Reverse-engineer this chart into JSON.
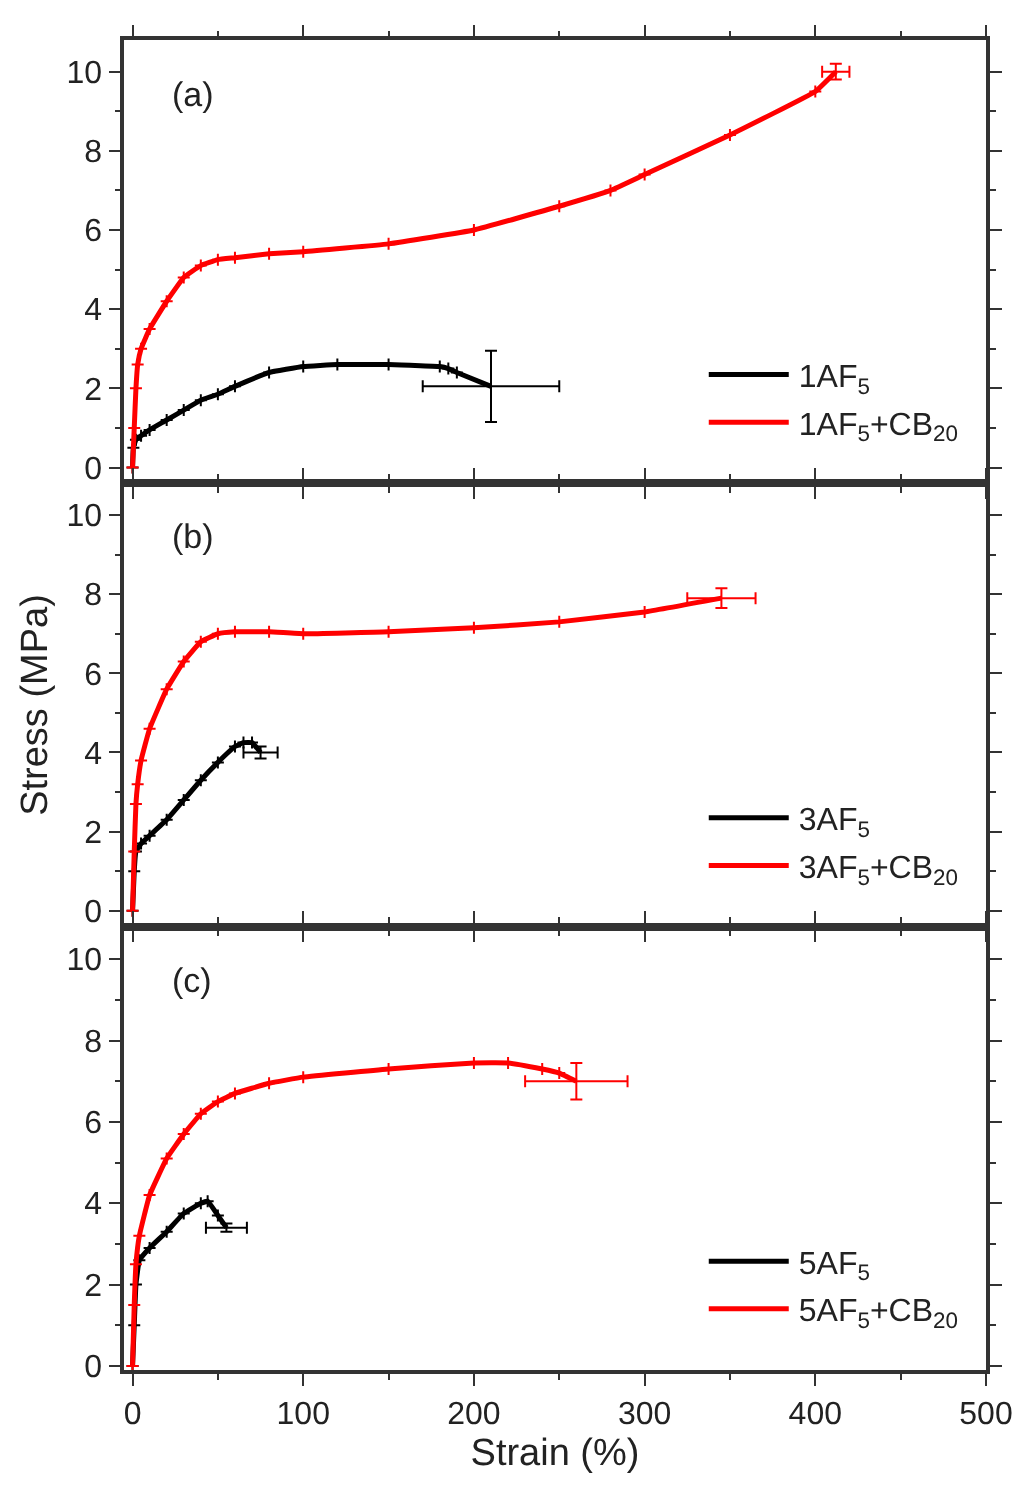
{
  "chart_data": [
    {
      "type": "line",
      "annotations": [
        "(a)"
      ],
      "xlim": [
        -5,
        500
      ],
      "xticks": [
        0,
        100,
        200,
        300,
        400,
        500
      ],
      "ylim": [
        -0.4,
        10.8
      ],
      "yticks": [
        0,
        2,
        4,
        6,
        8,
        10
      ],
      "tick_labels": "y",
      "legend": "bottom right",
      "grid": false,
      "series": [
        {
          "name": "1AF$_{5}$",
          "color": "#000000",
          "x": [
            0,
            0.5,
            2,
            5,
            10,
            20,
            30,
            40,
            50,
            60,
            80,
            100,
            120,
            150,
            180,
            185,
            190,
            210
          ],
          "values": [
            0,
            0.5,
            0.7,
            0.8,
            0.95,
            1.2,
            1.45,
            1.7,
            1.85,
            2.05,
            2.4,
            2.55,
            2.6,
            2.6,
            2.55,
            2.5,
            2.4,
            2.05
          ],
          "errors": [
            null,
            null,
            null,
            null,
            null,
            null,
            null,
            null,
            null,
            null,
            null,
            null,
            null,
            null,
            null,
            null,
            null,
            0.9
          ],
          "xerrors": [
            null,
            null,
            null,
            null,
            null,
            null,
            null,
            null,
            null,
            null,
            null,
            null,
            null,
            null,
            null,
            null,
            null,
            40
          ]
        },
        {
          "name": "1AF$_{5}$+CB$_{20}$",
          "color": "#ff0000",
          "x": [
            0,
            1,
            2,
            3,
            5,
            10,
            20,
            30,
            40,
            50,
            60,
            80,
            100,
            150,
            200,
            250,
            280,
            300,
            350,
            400,
            412
          ],
          "values": [
            0,
            1,
            2,
            2.6,
            3,
            3.5,
            4.2,
            4.8,
            5.1,
            5.25,
            5.3,
            5.4,
            5.45,
            5.65,
            6.0,
            6.6,
            7.0,
            7.4,
            8.4,
            9.5,
            10
          ],
          "errors": [
            null,
            null,
            null,
            null,
            null,
            null,
            null,
            null,
            null,
            null,
            null,
            null,
            null,
            null,
            null,
            null,
            null,
            null,
            null,
            null,
            0.2
          ],
          "xerrors": [
            null,
            null,
            null,
            null,
            null,
            null,
            null,
            null,
            null,
            null,
            null,
            null,
            null,
            null,
            null,
            null,
            null,
            null,
            null,
            null,
            8
          ]
        }
      ]
    },
    {
      "type": "line",
      "annotations": [
        "(b)"
      ],
      "ylabel": "Stress (MPa)",
      "xlim": [
        -5,
        500
      ],
      "xticks": [
        0,
        100,
        200,
        300,
        400,
        500
      ],
      "ylim": [
        -0.4,
        10.8
      ],
      "yticks": [
        0,
        2,
        4,
        6,
        8,
        10
      ],
      "tick_labels": "y",
      "legend": "bottom right",
      "grid": false,
      "series": [
        {
          "name": "3AF$_{5}$",
          "color": "#000000",
          "x": [
            0,
            1,
            2,
            5,
            10,
            20,
            30,
            40,
            50,
            60,
            65,
            70,
            75
          ],
          "values": [
            0,
            1,
            1.5,
            1.7,
            1.9,
            2.3,
            2.8,
            3.3,
            3.75,
            4.15,
            4.25,
            4.25,
            4.0
          ],
          "errors": [
            null,
            null,
            null,
            null,
            null,
            null,
            null,
            null,
            null,
            null,
            null,
            null,
            0.15
          ],
          "xerrors": [
            null,
            null,
            null,
            null,
            null,
            null,
            null,
            null,
            null,
            null,
            null,
            null,
            10
          ]
        },
        {
          "name": "3AF$_{5}$+CB$_{20}$",
          "color": "#ff0000",
          "x": [
            0,
            1,
            2,
            3,
            5,
            10,
            20,
            30,
            40,
            50,
            60,
            80,
            100,
            150,
            200,
            250,
            300,
            345
          ],
          "values": [
            0,
            1.5,
            2.7,
            3.2,
            3.8,
            4.6,
            5.6,
            6.3,
            6.8,
            7.0,
            7.05,
            7.05,
            7.0,
            7.05,
            7.15,
            7.3,
            7.55,
            7.9
          ],
          "errors": [
            null,
            null,
            null,
            null,
            null,
            null,
            null,
            null,
            null,
            null,
            null,
            null,
            null,
            null,
            null,
            null,
            null,
            0.25
          ],
          "xerrors": [
            null,
            null,
            null,
            null,
            null,
            null,
            null,
            null,
            null,
            null,
            null,
            null,
            null,
            null,
            null,
            null,
            null,
            20
          ]
        }
      ]
    },
    {
      "type": "line",
      "annotations": [
        "(c)"
      ],
      "xlabel": "Strain (%)",
      "xlim": [
        -5,
        500
      ],
      "xticks": [
        0,
        100,
        200,
        300,
        400,
        500
      ],
      "ylim": [
        -0.1,
        10.8
      ],
      "yticks": [
        0,
        2,
        4,
        6,
        8,
        10
      ],
      "legend": "bottom right",
      "grid": false,
      "series": [
        {
          "name": "5AF$_{5}$",
          "color": "#000000",
          "x": [
            0,
            1,
            2,
            4,
            10,
            20,
            30,
            40,
            44,
            50,
            55
          ],
          "values": [
            0,
            1,
            2,
            2.6,
            2.9,
            3.3,
            3.75,
            4.0,
            4.05,
            3.7,
            3.4
          ],
          "errors": [
            null,
            null,
            null,
            null,
            null,
            null,
            null,
            null,
            null,
            null,
            0.1
          ],
          "xerrors": [
            null,
            null,
            null,
            null,
            null,
            null,
            null,
            null,
            null,
            null,
            12
          ]
        },
        {
          "name": "5AF$_{5}$+CB$_{20}$",
          "color": "#ff0000",
          "x": [
            0,
            1,
            2,
            4,
            10,
            20,
            30,
            40,
            50,
            60,
            80,
            100,
            150,
            200,
            220,
            240,
            250,
            260
          ],
          "values": [
            0,
            1.5,
            2.5,
            3.2,
            4.2,
            5.1,
            5.7,
            6.2,
            6.5,
            6.7,
            6.95,
            7.1,
            7.3,
            7.45,
            7.45,
            7.3,
            7.2,
            7.0
          ],
          "errors": [
            null,
            null,
            null,
            null,
            null,
            null,
            null,
            null,
            null,
            null,
            null,
            null,
            null,
            null,
            null,
            null,
            null,
            0.45
          ],
          "xerrors": [
            null,
            null,
            null,
            null,
            null,
            null,
            null,
            null,
            null,
            null,
            null,
            null,
            null,
            null,
            null,
            null,
            null,
            30
          ]
        }
      ]
    }
  ]
}
